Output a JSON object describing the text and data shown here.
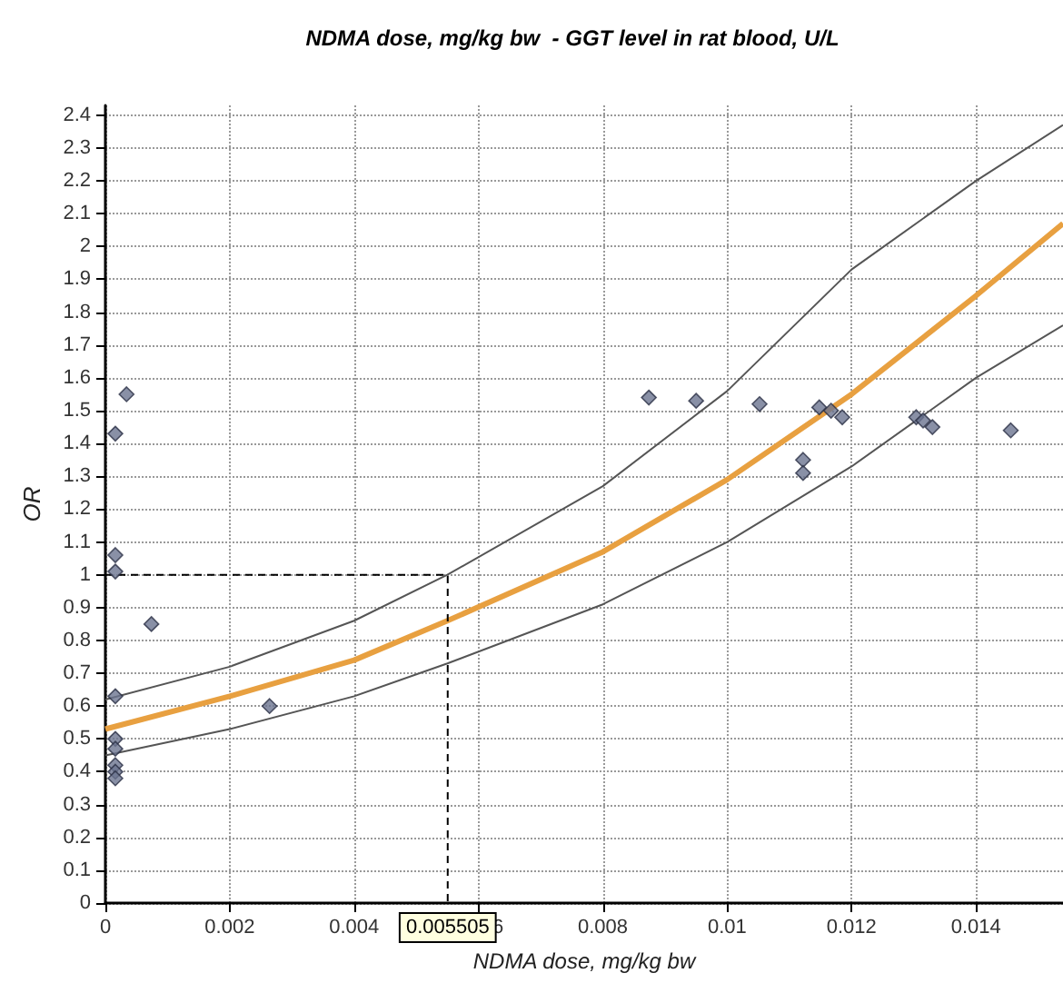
{
  "chart_data": {
    "type": "scatter",
    "title": "NDMA dose, mg/kg bw  - GGT level in rat blood, U/L",
    "xlabel": "NDMA dose, mg/kg bw",
    "ylabel": "OR",
    "xlim": [
      0,
      0.0154
    ],
    "xticks": [
      0,
      0.002,
      0.004,
      0.006,
      0.008,
      0.01,
      0.012,
      0.014
    ],
    "ylim": [
      0,
      2.43
    ],
    "yticks": [
      0,
      0.1,
      0.2,
      0.3,
      0.4,
      0.5,
      0.6,
      0.7,
      0.8,
      0.9,
      1,
      1.1,
      1.2,
      1.3,
      1.4,
      1.5,
      1.6,
      1.7,
      1.8,
      1.9,
      2,
      2.1,
      2.2,
      2.3,
      2.4
    ],
    "grid": true,
    "marker": "diamond",
    "annotations": [
      {
        "text": "0.005505",
        "x": 0.005505,
        "y": 0
      }
    ],
    "series": [
      {
        "type": "line",
        "color": "#555555",
        "marker": "none",
        "x": [
          0,
          0.002,
          0.004,
          0.0055,
          0.008,
          0.01,
          0.012,
          0.014,
          0.0154
        ],
        "values": [
          0.62,
          0.72,
          0.86,
          1.0,
          1.27,
          1.56,
          1.93,
          2.2,
          2.37
        ]
      },
      {
        "type": "line",
        "color": "#555555",
        "marker": "none",
        "x": [
          0,
          0.002,
          0.004,
          0.0055,
          0.008,
          0.01,
          0.012,
          0.014,
          0.0154
        ],
        "values": [
          0.45,
          0.53,
          0.63,
          0.73,
          0.91,
          1.1,
          1.33,
          1.6,
          1.76
        ]
      },
      {
        "type": "line",
        "color": "#e8a040",
        "marker": "none",
        "x": [
          0,
          0.002,
          0.004,
          0.0055,
          0.008,
          0.01,
          0.012,
          0.014,
          0.0154
        ],
        "values": [
          0.53,
          0.63,
          0.74,
          0.86,
          1.07,
          1.29,
          1.55,
          1.85,
          2.07
        ]
      },
      {
        "type": "line",
        "color": "#000000",
        "marker": "none",
        "line_style": "dashed",
        "x": [
          0,
          0.005505,
          0.005505
        ],
        "values": [
          1,
          1,
          0
        ]
      },
      {
        "color": "#6b7490",
        "x": [
          0.00016,
          0.00034,
          0.00016,
          0.00016,
          0.00074,
          0.00016,
          0.00016,
          0.00016,
          0.00016,
          0.00016,
          0.00016,
          0.00264,
          0.00874,
          0.0095,
          0.01052,
          0.01148,
          0.01167,
          0.01185,
          0.01122,
          0.01122,
          0.01304,
          0.01315,
          0.0133,
          0.01456
        ],
        "values": [
          1.43,
          1.55,
          1.06,
          1.01,
          0.85,
          0.63,
          0.5,
          0.47,
          0.42,
          0.4,
          0.38,
          0.6,
          1.54,
          1.53,
          1.52,
          1.51,
          1.5,
          1.48,
          1.35,
          1.31,
          1.48,
          1.47,
          1.45,
          1.44
        ]
      }
    ]
  }
}
